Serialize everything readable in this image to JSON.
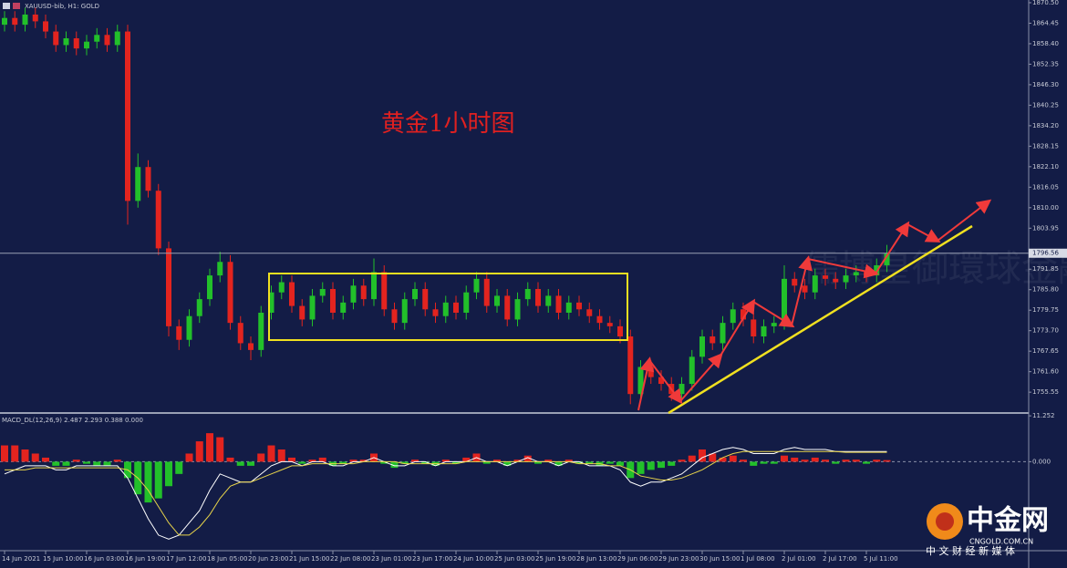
{
  "chart_data": [
    {
      "type": "candlestick",
      "title": "黄金1小时图",
      "subtitle": "XAUUSD-bib, H1: GOLD",
      "annotations": [
        "中金网",
        "CNGOLD.COM.CN",
        "中 文 财 经 新 媒 体",
        "儒博皇御環球金融"
      ],
      "categories": [
        "14 Jun 2021",
        null,
        null,
        null,
        "15 Jun 10:00",
        null,
        null,
        null,
        "16 Jun 03:00",
        null,
        null,
        null,
        "16 Jun 19:00",
        null,
        null,
        null,
        "17 Jun 12:00",
        null,
        null,
        null,
        "18 Jun 05:00",
        null,
        null,
        null,
        "20 Jun 23:00",
        null,
        null,
        null,
        "21 Jun 15:00",
        null,
        null,
        null,
        "22 Jun 08:00",
        null,
        null,
        null,
        "23 Jun 01:00",
        null,
        null,
        null,
        "23 Jun 17:00",
        null,
        null,
        null,
        "24 Jun 10:00",
        null,
        null,
        null,
        "25 Jun 03:00",
        null,
        null,
        null,
        "25 Jun 19:00",
        null,
        null,
        null,
        "28 Jun 13:00",
        null,
        null,
        null,
        "29 Jun 06:00",
        null,
        null,
        null,
        "29 Jun 23:00",
        null,
        null,
        null,
        "30 Jun 15:00",
        null,
        null,
        null,
        "1 Jul 08:00",
        null,
        null,
        null,
        "2 Jul 01:00",
        null,
        null,
        null,
        "2 Jul 17:00",
        null,
        null,
        null,
        "5 Jul 11:00",
        null,
        null
      ],
      "open": [
        1864,
        1866,
        1864,
        1867,
        1865,
        1862,
        1858,
        1860,
        1857,
        1859,
        1861,
        1858,
        1862,
        1812,
        1822,
        1815,
        1798,
        1775,
        1771,
        1778,
        1783,
        1790,
        1794,
        1776,
        1770,
        1768,
        1779,
        1785,
        1788,
        1781,
        1777,
        1784,
        1786,
        1779,
        1782,
        1787,
        1783,
        1791,
        1780,
        1776,
        1783,
        1786,
        1780,
        1778,
        1782,
        1779,
        1785,
        1789,
        1781,
        1784,
        1777,
        1783,
        1786,
        1781,
        1784,
        1779,
        1782,
        1780,
        1778,
        1776,
        1775,
        1772,
        1755,
        1763,
        1760,
        1758,
        1755,
        1758,
        1766,
        1772,
        1770,
        1776,
        1780,
        1777,
        1772,
        1775,
        1776,
        1789,
        1787,
        1785,
        1790,
        1789,
        1788,
        1790,
        1791,
        1790,
        1793
      ],
      "high": [
        1868,
        1868,
        1869,
        1869,
        1867,
        1864,
        1862,
        1862,
        1861,
        1863,
        1863,
        1864,
        1864,
        1826,
        1824,
        1817,
        1800,
        1777,
        1780,
        1785,
        1792,
        1797,
        1796,
        1778,
        1772,
        1781,
        1787,
        1790,
        1790,
        1783,
        1786,
        1788,
        1788,
        1784,
        1789,
        1789,
        1795,
        1793,
        1782,
        1785,
        1788,
        1788,
        1782,
        1784,
        1784,
        1787,
        1791,
        1791,
        1786,
        1786,
        1785,
        1788,
        1788,
        1786,
        1786,
        1784,
        1784,
        1782,
        1780,
        1778,
        1777,
        1774,
        1765,
        1765,
        1762,
        1760,
        1760,
        1768,
        1774,
        1774,
        1778,
        1782,
        1782,
        1779,
        1777,
        1778,
        1793,
        1791,
        1789,
        1792,
        1792,
        1791,
        1792,
        1793,
        1793,
        1795,
        1799
      ],
      "low": [
        1862,
        1862,
        1862,
        1863,
        1860,
        1856,
        1856,
        1855,
        1855,
        1857,
        1856,
        1856,
        1805,
        1810,
        1813,
        1796,
        1772,
        1768,
        1769,
        1776,
        1781,
        1788,
        1774,
        1768,
        1765,
        1766,
        1777,
        1783,
        1779,
        1775,
        1775,
        1782,
        1777,
        1777,
        1780,
        1781,
        1781,
        1778,
        1774,
        1774,
        1781,
        1778,
        1776,
        1776,
        1777,
        1777,
        1783,
        1779,
        1779,
        1775,
        1775,
        1781,
        1779,
        1779,
        1777,
        1777,
        1778,
        1776,
        1774,
        1773,
        1770,
        1752,
        1753,
        1758,
        1756,
        1753,
        1753,
        1756,
        1764,
        1768,
        1768,
        1774,
        1775,
        1770,
        1770,
        1773,
        1774,
        1785,
        1783,
        1783,
        1787,
        1786,
        1786,
        1788,
        1788,
        1788,
        1791
      ],
      "close": [
        1866,
        1864,
        1867,
        1865,
        1862,
        1858,
        1860,
        1857,
        1859,
        1861,
        1858,
        1862,
        1812,
        1822,
        1815,
        1798,
        1775,
        1771,
        1778,
        1783,
        1790,
        1794,
        1776,
        1770,
        1768,
        1779,
        1785,
        1788,
        1781,
        1777,
        1784,
        1786,
        1779,
        1782,
        1787,
        1783,
        1791,
        1780,
        1776,
        1783,
        1786,
        1780,
        1778,
        1782,
        1779,
        1785,
        1789,
        1781,
        1784,
        1777,
        1783,
        1786,
        1781,
        1784,
        1779,
        1782,
        1780,
        1778,
        1776,
        1775,
        1772,
        1755,
        1763,
        1760,
        1758,
        1755,
        1758,
        1766,
        1772,
        1770,
        1776,
        1780,
        1777,
        1772,
        1775,
        1776,
        1789,
        1787,
        1785,
        1790,
        1789,
        1788,
        1790,
        1791,
        1790,
        1793,
        1796.56
      ],
      "up_color": "#22c02a",
      "down_color": "#e3241f",
      "current_price": 1796.56,
      "ylim": [
        1749.4,
        1871.3
      ],
      "yticks": [
        {
          "value": 1870.5,
          "label": "1870.50"
        },
        {
          "value": 1864.45,
          "label": "1864.45"
        },
        {
          "value": 1858.4,
          "label": "1858.40"
        },
        {
          "value": 1852.35,
          "label": "1852.35"
        },
        {
          "value": 1846.3,
          "label": "1846.30"
        },
        {
          "value": 1840.25,
          "label": "1840.25"
        },
        {
          "value": 1834.2,
          "label": "1834.20"
        },
        {
          "value": 1828.15,
          "label": "1828.15"
        },
        {
          "value": 1822.1,
          "label": "1822.10"
        },
        {
          "value": 1816.05,
          "label": "1816.05"
        },
        {
          "value": 1810,
          "label": "1810.00"
        },
        {
          "value": 1803.95,
          "label": "1803.95"
        },
        {
          "value": 1791.85,
          "label": "1791.85"
        },
        {
          "value": 1785.8,
          "label": "1785.80"
        },
        {
          "value": 1779.75,
          "label": "1779.75"
        },
        {
          "value": 1773.7,
          "label": "1773.70"
        },
        {
          "value": 1767.65,
          "label": "1767.65"
        },
        {
          "value": 1761.6,
          "label": "1761.60"
        },
        {
          "value": 1755.55,
          "label": "1755.55"
        }
      ]
    },
    {
      "type": "macd",
      "title": "MACD_DL(12,26,9) 2.487 2.293 0.388 0.000",
      "histogram": [
        4,
        4,
        3,
        2,
        1,
        -1,
        -1,
        0.5,
        -0.5,
        -1,
        -1,
        0.5,
        -4,
        -8,
        -10,
        -9,
        -6,
        -3,
        2,
        5,
        7,
        6,
        1,
        -1,
        -1,
        2,
        4,
        3,
        1,
        -0.5,
        0.5,
        1,
        -1,
        -0.5,
        0.5,
        0.5,
        2,
        -0.5,
        -1.5,
        -0.5,
        0.5,
        -0.5,
        -1,
        0.5,
        -0.5,
        1,
        2,
        -0.5,
        0.5,
        -1,
        0.5,
        1.5,
        -0.5,
        0.5,
        -1,
        0.5,
        -0.5,
        -0.5,
        -1,
        -0.5,
        -1,
        -4,
        -3,
        -2,
        -1.5,
        -1,
        0.5,
        1.5,
        3,
        2,
        1,
        1.5,
        0.5,
        -1,
        -0.5,
        -0.5,
        1.5,
        1,
        0.5,
        1,
        0.5,
        -0.5,
        0.5,
        0.5,
        -0.5,
        0.5,
        0.388
      ],
      "macd": [
        -3,
        -2,
        -1,
        -1,
        -1,
        -2,
        -2,
        -1,
        -1,
        -1,
        -1,
        -1,
        -4,
        -9,
        -14,
        -18,
        -19,
        -18,
        -15,
        -12,
        -7,
        -3,
        -4,
        -5,
        -5,
        -3,
        -1,
        0,
        0,
        -1,
        0,
        0,
        -1,
        -1,
        0,
        0,
        1,
        0,
        -1,
        -1,
        0,
        0,
        -1,
        0,
        0,
        0,
        1,
        0,
        0,
        -1,
        0,
        1,
        0,
        0,
        -1,
        0,
        0,
        -1,
        -1,
        -1,
        -2,
        -5,
        -6,
        -5,
        -5,
        -4,
        -3,
        -1,
        1,
        2,
        3,
        3.5,
        3,
        2,
        2,
        2,
        3,
        3.5,
        3,
        3,
        3,
        2.5,
        2.5,
        2.5,
        2.5,
        2.5,
        2.487
      ],
      "signal": [
        -2,
        -2,
        -2,
        -1.5,
        -1.5,
        -1.5,
        -1.5,
        -1.5,
        -1.5,
        -1.5,
        -1.5,
        -1.5,
        -2,
        -4,
        -7,
        -11,
        -15,
        -18,
        -18,
        -16,
        -13,
        -9,
        -6,
        -5,
        -5,
        -4,
        -3,
        -2,
        -1,
        -1,
        -0.5,
        -0.5,
        -0.5,
        -0.5,
        -0.5,
        0,
        0,
        0,
        0,
        -0.5,
        -0.5,
        -0.5,
        -0.5,
        -0.5,
        -0.5,
        0,
        0,
        0,
        0,
        0,
        0,
        0,
        0,
        0,
        0,
        0,
        -0.5,
        -0.5,
        -0.5,
        -1,
        -1,
        -2,
        -3.5,
        -4,
        -4.5,
        -4.5,
        -4,
        -3,
        -2,
        -0.5,
        1,
        2,
        2.5,
        2.5,
        2.5,
        2.5,
        2.5,
        2.5,
        2.5,
        2.5,
        2.5,
        2.5,
        2.3,
        2.3,
        2.3,
        2.3,
        2.293
      ],
      "up_color": "#e3241f",
      "down_color": "#22c02a",
      "macd_color": "#ffffff",
      "signal_color": "#e8d44a",
      "ylim": [
        -21.6,
        11.5
      ],
      "yticks": [
        11.252,
        {
          "value": 0,
          "label": "0.000"
        }
      ]
    }
  ]
}
